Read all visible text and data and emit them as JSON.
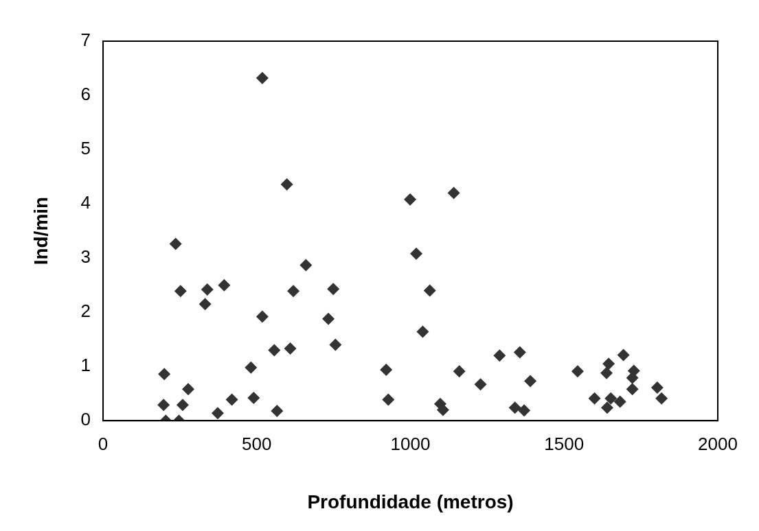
{
  "chart_data": {
    "type": "scatter",
    "xlabel": "Profundidade (metros)",
    "ylabel": "Ind/min",
    "xlim": [
      0,
      2000
    ],
    "xticks": [
      0,
      500,
      1000,
      1500,
      2000
    ],
    "ylim": [
      0,
      7
    ],
    "yticks": [
      0,
      1,
      2,
      3,
      4,
      5,
      6,
      7
    ],
    "grid": false,
    "legend": false,
    "marker": "diamond",
    "series": [
      {
        "color": "#333333",
        "x": [
          199,
          197,
          204,
          247,
          236,
          252,
          259,
          277,
          332,
          339,
          394,
          373,
          419,
          481,
          490,
          518,
          518,
          557,
          566,
          598,
          609,
          619,
          660,
          733,
          749,
          756,
          921,
          928,
          999,
          1019,
          1063,
          1040,
          1097,
          1106,
          1141,
          1159,
          1228,
          1290,
          1340,
          1356,
          1370,
          1390,
          1544,
          1599,
          1645,
          1638,
          1693,
          1652,
          1640,
          1682,
          1727,
          1722,
          1722,
          1803,
          1817
        ],
        "values": [
          0.86,
          0.29,
          0,
          0,
          3.26,
          2.39,
          0.29,
          0.58,
          2.15,
          2.42,
          2.5,
          0.14,
          0.39,
          0.98,
          0.42,
          6.32,
          1.92,
          1.3,
          0.18,
          4.36,
          1.33,
          2.39,
          2.87,
          1.88,
          2.43,
          1.4,
          0.94,
          0.39,
          4.08,
          3.08,
          2.4,
          1.64,
          0.31,
          0.2,
          4.2,
          0.91,
          0.67,
          1.2,
          0.24,
          1.26,
          0.19,
          0.73,
          0.91,
          0.41,
          1.05,
          0.88,
          1.21,
          0.41,
          0.24,
          0.35,
          0.92,
          0.79,
          0.58,
          0.61,
          0.41
        ]
      }
    ]
  }
}
